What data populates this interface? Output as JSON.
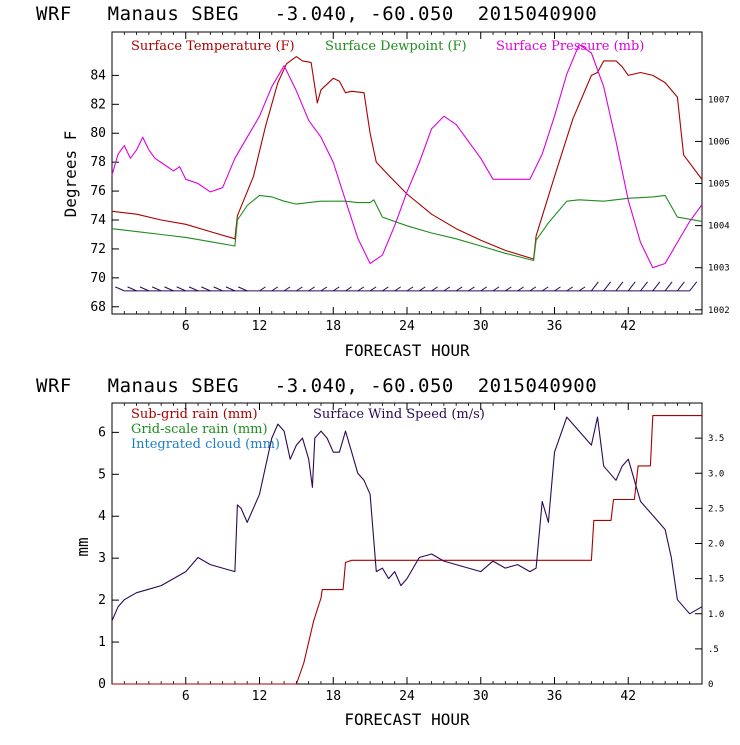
{
  "chart_data": [
    {
      "type": "line",
      "title": "WRF   Manaus SBEG   -3.040, -60.050  2015040900",
      "xlabel": "FORECAST HOUR",
      "ylabel": "Degrees F",
      "xlim": [
        0,
        48
      ],
      "ylim": [
        67.5,
        87
      ],
      "y2lim": [
        1001.9,
        1008.6
      ],
      "xticks": [
        "6",
        "12",
        "18",
        "24",
        "30",
        "36",
        "42"
      ],
      "yticks": [
        "68",
        "70",
        "72",
        "74",
        "76",
        "78",
        "80",
        "82",
        "84"
      ],
      "y2ticks": [
        "1002",
        "1003",
        "1004",
        "1005",
        "1006",
        "1007"
      ],
      "series": [
        {
          "name": "Surface Temperature (F)",
          "color": "#aa0000",
          "axis": "left",
          "x": [
            0,
            2,
            4,
            6,
            8,
            10,
            10.2,
            11.5,
            12.5,
            13.5,
            14.2,
            15,
            15.5,
            16.2,
            16.7,
            17,
            18,
            18.5,
            19,
            19.5,
            20.5,
            21,
            21.5,
            22.5,
            24,
            26,
            28,
            30,
            32,
            34.3,
            34.5,
            36,
            37.5,
            39,
            39.5,
            40,
            41,
            41.5,
            42,
            43,
            44,
            45,
            46,
            46.5,
            48
          ],
          "y": [
            74.6,
            74.4,
            74.0,
            73.7,
            73.2,
            72.7,
            74.3,
            77.0,
            80.5,
            83.5,
            84.8,
            85.3,
            85.0,
            84.9,
            82.1,
            83.0,
            83.8,
            83.6,
            82.8,
            82.9,
            82.8,
            80.0,
            78.0,
            77.1,
            75.8,
            74.4,
            73.4,
            72.6,
            71.9,
            71.3,
            72.9,
            77.0,
            81.0,
            84.0,
            84.2,
            85.0,
            85.0,
            84.6,
            84.0,
            84.2,
            84.0,
            83.5,
            82.5,
            78.5,
            76.8
          ]
        },
        {
          "name": "Surface Dewpoint (F)",
          "color": "#1e8c1e",
          "axis": "left",
          "x": [
            0,
            2,
            4,
            6,
            8,
            10,
            10.2,
            11,
            12,
            13,
            14,
            15,
            16,
            17,
            18,
            19,
            20,
            21,
            21.3,
            22,
            24,
            26,
            28,
            30,
            32,
            34.3,
            34.5,
            35.5,
            37,
            38,
            40,
            42,
            44,
            45,
            46,
            48
          ],
          "y": [
            73.4,
            73.2,
            73.0,
            72.8,
            72.5,
            72.2,
            74.0,
            75.0,
            75.7,
            75.6,
            75.3,
            75.1,
            75.2,
            75.3,
            75.3,
            75.3,
            75.2,
            75.2,
            75.4,
            74.2,
            73.6,
            73.1,
            72.7,
            72.2,
            71.7,
            71.2,
            72.6,
            73.8,
            75.3,
            75.4,
            75.3,
            75.5,
            75.6,
            75.7,
            74.2,
            73.9
          ]
        },
        {
          "name": "Surface Pressure (mb)",
          "color": "#dd00dd",
          "axis": "right",
          "x": [
            0,
            0.5,
            1,
            1.5,
            2,
            2.5,
            3,
            3.5,
            4,
            5,
            5.5,
            6,
            7,
            8,
            9,
            10,
            11,
            12,
            13,
            14,
            15,
            16,
            17,
            18,
            19,
            20,
            21,
            22,
            23,
            24,
            25,
            26,
            27,
            28,
            29,
            30,
            31,
            32,
            33,
            34,
            35,
            36,
            37,
            38,
            39,
            40,
            41,
            42,
            43,
            44,
            45,
            46,
            47,
            48
          ],
          "y": [
            1005.2,
            1005.7,
            1005.9,
            1005.6,
            1005.8,
            1006.1,
            1005.8,
            1005.6,
            1005.5,
            1005.3,
            1005.4,
            1005.1,
            1005.0,
            1004.8,
            1004.9,
            1005.6,
            1006.1,
            1006.6,
            1007.3,
            1007.8,
            1007.2,
            1006.5,
            1006.1,
            1005.5,
            1004.6,
            1003.7,
            1003.1,
            1003.3,
            1004.0,
            1004.8,
            1005.5,
            1006.3,
            1006.6,
            1006.4,
            1006.0,
            1005.6,
            1005.1,
            1005.1,
            1005.1,
            1005.1,
            1005.7,
            1006.6,
            1007.6,
            1008.3,
            1008.1,
            1007.3,
            1006.0,
            1004.6,
            1003.6,
            1003.0,
            1003.1,
            1003.6,
            1004.1,
            1004.5
          ]
        }
      ],
      "wind_barbs": {
        "y_level": 69.1,
        "color": "#2c0a54",
        "x": [
          1,
          2,
          3,
          4,
          5,
          6,
          7,
          8,
          9,
          10,
          11,
          12,
          13,
          14,
          15,
          16,
          17,
          18,
          19,
          20,
          21,
          22,
          23,
          24,
          25,
          26,
          27,
          28,
          29,
          30,
          31,
          32,
          33,
          34,
          35,
          36,
          37,
          38,
          39,
          40,
          41,
          42,
          43,
          44,
          45,
          46,
          47
        ]
      }
    },
    {
      "type": "line",
      "title": "WRF   Manaus SBEG   -3.040, -60.050  2015040900",
      "xlabel": "FORECAST HOUR",
      "ylabel": "mm",
      "xlim": [
        0,
        48
      ],
      "ylim": [
        0,
        6.7
      ],
      "y2lim": [
        0,
        4.0
      ],
      "xticks": [
        "6",
        "12",
        "18",
        "24",
        "30",
        "36",
        "42"
      ],
      "yticks": [
        "0",
        "1",
        "2",
        "3",
        "4",
        "5",
        "6"
      ],
      "y2ticks": [
        "0",
        ".5",
        "1.0",
        "1.5",
        "2.0",
        "2.5",
        "3.0",
        "3.5"
      ],
      "legend": [
        {
          "name": "Sub-grid rain (mm)",
          "color": "#aa0000"
        },
        {
          "name": "Surface Wind Speed (m/s)",
          "color": "#2c0a54"
        },
        {
          "name": "Grid-scale rain (mm)",
          "color": "#1e8c1e"
        },
        {
          "name": "Integrated cloud (mm)",
          "color": "#1e7ec8"
        }
      ],
      "series": [
        {
          "name": "Sub-grid rain (mm)",
          "color": "#aa0000",
          "axis": "left",
          "x": [
            0,
            15.0,
            15.6,
            16.4,
            17.0,
            17.1,
            18.8,
            19.0,
            19.5,
            39.0,
            39.2,
            40.6,
            40.8,
            42.5,
            42.8,
            43.8,
            44.0,
            48
          ],
          "y": [
            0,
            0,
            0.5,
            1.5,
            2.05,
            2.25,
            2.25,
            2.9,
            2.95,
            2.95,
            3.9,
            3.9,
            4.4,
            4.4,
            5.2,
            5.2,
            6.4,
            6.4
          ]
        },
        {
          "name": "Surface Wind Speed (m/s)",
          "color": "#2c0a54",
          "axis": "right",
          "x": [
            0,
            0.5,
            1,
            2,
            3,
            4,
            5,
            6,
            7,
            8,
            9,
            10,
            10.2,
            10.5,
            11,
            12,
            13,
            13.5,
            14,
            14.5,
            15,
            15.5,
            16,
            16.3,
            16.5,
            17,
            17.5,
            18,
            18.5,
            19,
            19.5,
            20,
            20.5,
            21,
            21.5,
            22,
            22.5,
            23,
            23.5,
            24,
            25,
            26,
            27,
            28,
            29,
            30,
            31,
            32,
            33,
            34,
            34.5,
            35,
            35.5,
            36,
            37,
            38,
            39,
            39.5,
            40,
            41,
            41.5,
            42,
            42.5,
            43,
            44,
            45,
            45.5,
            46,
            47,
            48
          ],
          "y": [
            0.9,
            1.1,
            1.2,
            1.3,
            1.35,
            1.4,
            1.5,
            1.6,
            1.8,
            1.7,
            1.65,
            1.6,
            2.55,
            2.5,
            2.3,
            2.7,
            3.5,
            3.7,
            3.6,
            3.2,
            3.4,
            3.5,
            3.2,
            2.8,
            3.5,
            3.6,
            3.5,
            3.3,
            3.3,
            3.6,
            3.3,
            3.0,
            2.9,
            2.7,
            1.6,
            1.65,
            1.5,
            1.6,
            1.4,
            1.5,
            1.8,
            1.85,
            1.75,
            1.7,
            1.65,
            1.6,
            1.75,
            1.65,
            1.7,
            1.6,
            1.65,
            2.6,
            2.3,
            3.3,
            3.8,
            3.6,
            3.4,
            3.8,
            3.1,
            2.9,
            3.1,
            3.2,
            2.9,
            2.6,
            2.4,
            2.2,
            1.8,
            1.2,
            1.0,
            1.1
          ]
        }
      ]
    }
  ]
}
